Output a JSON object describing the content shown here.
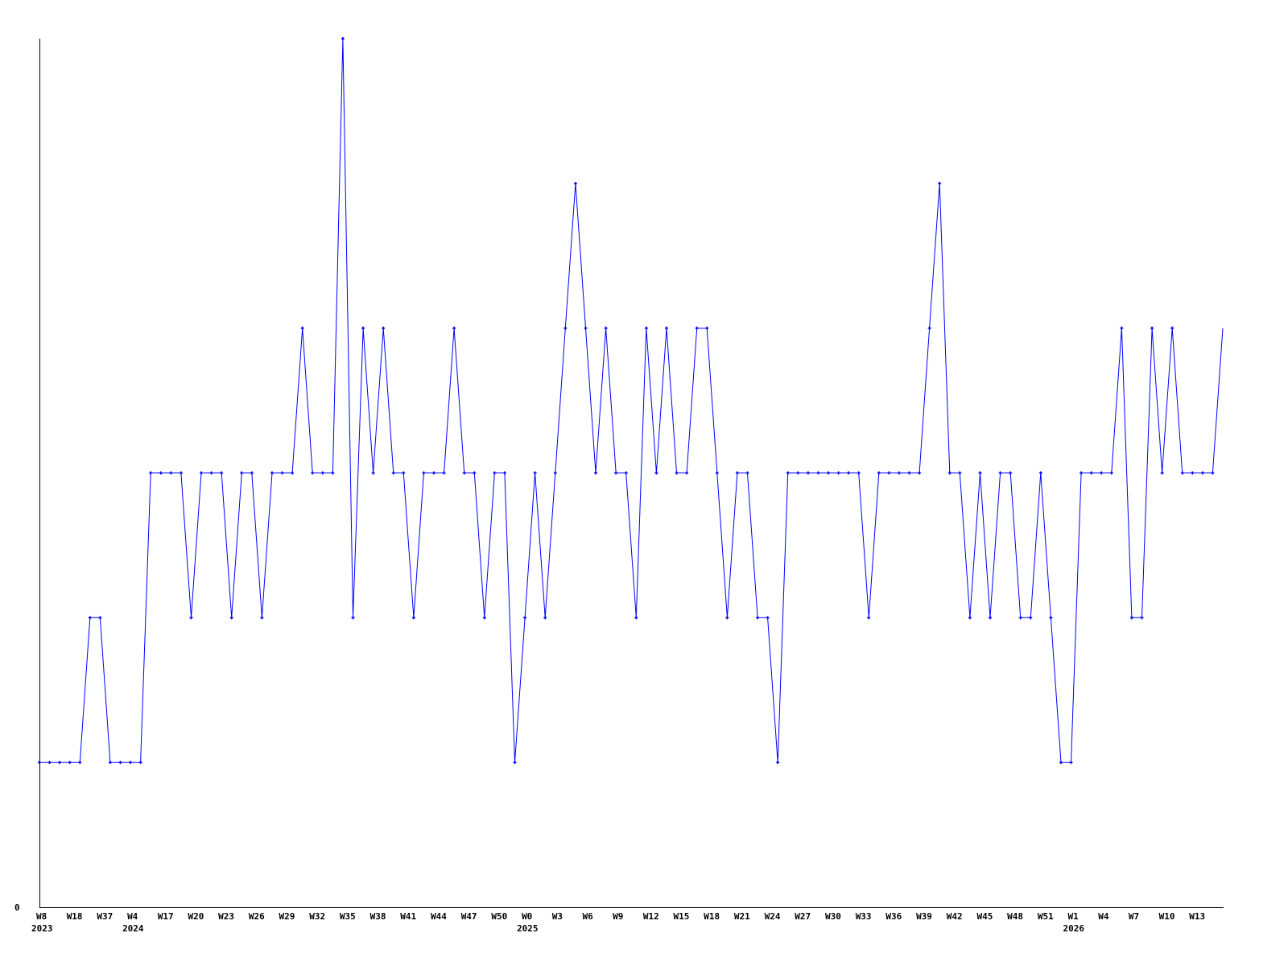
{
  "chart_data": {
    "type": "line",
    "title": "",
    "xlabel": "",
    "ylabel": "",
    "ylim": [
      0,
      6
    ],
    "y_tick_labels": [
      "0"
    ],
    "grid": false,
    "legend": "none",
    "line_color": "#0000ff",
    "axis_color": "#000000",
    "x_tick_labels": [
      {
        "index": 0,
        "label": "W8",
        "year": "2023"
      },
      {
        "index": 3,
        "label": "W18"
      },
      {
        "index": 6,
        "label": "W37"
      },
      {
        "index": 9,
        "label": "W4",
        "year": "2024"
      },
      {
        "index": 12,
        "label": "W17"
      },
      {
        "index": 15,
        "label": "W20"
      },
      {
        "index": 18,
        "label": "W23"
      },
      {
        "index": 21,
        "label": "W26"
      },
      {
        "index": 24,
        "label": "W29"
      },
      {
        "index": 27,
        "label": "W32"
      },
      {
        "index": 30,
        "label": "W35"
      },
      {
        "index": 33,
        "label": "W38"
      },
      {
        "index": 36,
        "label": "W41"
      },
      {
        "index": 39,
        "label": "W44"
      },
      {
        "index": 42,
        "label": "W47"
      },
      {
        "index": 45,
        "label": "W50"
      },
      {
        "index": 48,
        "label": "W0",
        "year": "2025"
      },
      {
        "index": 51,
        "label": "W3"
      },
      {
        "index": 54,
        "label": "W6"
      },
      {
        "index": 57,
        "label": "W9"
      },
      {
        "index": 60,
        "label": "W12"
      },
      {
        "index": 63,
        "label": "W15"
      },
      {
        "index": 66,
        "label": "W18"
      },
      {
        "index": 69,
        "label": "W21"
      },
      {
        "index": 72,
        "label": "W24"
      },
      {
        "index": 75,
        "label": "W27"
      },
      {
        "index": 78,
        "label": "W30"
      },
      {
        "index": 81,
        "label": "W33"
      },
      {
        "index": 84,
        "label": "W36"
      },
      {
        "index": 87,
        "label": "W39"
      },
      {
        "index": 90,
        "label": "W42"
      },
      {
        "index": 93,
        "label": "W45"
      },
      {
        "index": 96,
        "label": "W48"
      },
      {
        "index": 99,
        "label": "W51"
      },
      {
        "index": 102,
        "label": "W1",
        "year": "2026"
      },
      {
        "index": 105,
        "label": "W4"
      },
      {
        "index": 108,
        "label": "W7"
      },
      {
        "index": 111,
        "label": "W10"
      },
      {
        "index": 114,
        "label": "W13"
      }
    ],
    "values": [
      1,
      1,
      1,
      1,
      1,
      2,
      2,
      1,
      1,
      1,
      1,
      3,
      3,
      3,
      3,
      2,
      3,
      3,
      3,
      2,
      3,
      3,
      2,
      3,
      3,
      3,
      4,
      3,
      3,
      3,
      6,
      2,
      4,
      3,
      4,
      3,
      3,
      2,
      3,
      3,
      3,
      4,
      3,
      3,
      2,
      3,
      3,
      1,
      2,
      3,
      2,
      3,
      4,
      5,
      4,
      3,
      4,
      3,
      3,
      2,
      4,
      3,
      4,
      3,
      3,
      4,
      4,
      3,
      2,
      3,
      3,
      2,
      2,
      1,
      3,
      3,
      3,
      3,
      3,
      3,
      3,
      3,
      2,
      3,
      3,
      3,
      3,
      3,
      4,
      5,
      3,
      3,
      2,
      3,
      2,
      3,
      3,
      2,
      2,
      3,
      2,
      1,
      1,
      3,
      3,
      3,
      3,
      4,
      2,
      2,
      4,
      3,
      4,
      3,
      3,
      3,
      3,
      4
    ]
  }
}
